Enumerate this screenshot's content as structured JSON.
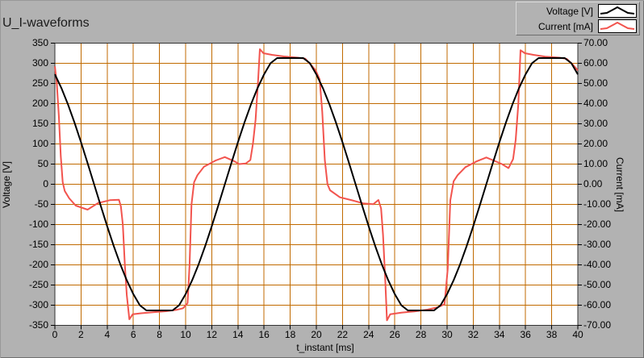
{
  "window": {
    "title": "U_I-waveforms"
  },
  "legend": {
    "items": [
      {
        "label": "Voltage [V]",
        "color": "#000000"
      },
      {
        "label": "Current [mA]",
        "color": "#f2544e"
      }
    ]
  },
  "colors": {
    "panel_bg": "#b2b2b2",
    "plot_bg": "#ffffff",
    "grid": "#c06a00",
    "plot_border": "#333333",
    "voltage_trace": "#000000",
    "current_trace": "#f2544e"
  },
  "chart_data": {
    "type": "line",
    "title": "U_I-waveforms",
    "grid": {
      "show": true,
      "color": "#c06a00"
    },
    "legend_position": "top-right",
    "x_axis": {
      "label": "t_instant [ms]",
      "min": 0,
      "max": 40,
      "tick_step": 2,
      "tick_labels": [
        "0",
        "2",
        "4",
        "6",
        "8",
        "10",
        "12",
        "14",
        "16",
        "18",
        "20",
        "22",
        "24",
        "26",
        "28",
        "30",
        "32",
        "34",
        "36",
        "38",
        "40"
      ]
    },
    "y_left_axis": {
      "label": "Voltage [V]",
      "min": -350,
      "max": 350,
      "tick_step": 50,
      "tick_labels": [
        "350",
        "300",
        "250",
        "200",
        "150",
        "100",
        "50",
        "0",
        "-50",
        "-100",
        "-150",
        "-200",
        "-250",
        "-300",
        "-350"
      ]
    },
    "y_right_axis": {
      "label": "Current [mA]",
      "min": -70,
      "max": 70,
      "tick_step": 10,
      "tick_labels": [
        "70.00",
        "60.00",
        "50.00",
        "40.00",
        "30.00",
        "20.00",
        "10.00",
        "0.00",
        "-10.00",
        "-20.00",
        "-30.00",
        "-40.00",
        "-50.00",
        "-60.00",
        "-70.00"
      ]
    },
    "series": [
      {
        "name": "Voltage [V]",
        "axis": "left",
        "unit": "V",
        "color": "#000000",
        "sampling": {
          "t0": 0,
          "dt": 0.5
        },
        "values": [
          272.6,
          238.3,
          198.1,
          153,
          104.1,
          52.7,
          0,
          -52.7,
          -104.1,
          -153,
          -198.1,
          -238.3,
          -272.6,
          -300.3,
          -313,
          -313,
          -313,
          -313,
          -313,
          -300.3,
          -272.6,
          -238.3,
          -198.1,
          -153,
          -104.1,
          -52.7,
          0,
          52.7,
          104.1,
          153,
          198.1,
          238.3,
          272.6,
          300.3,
          313,
          313,
          313,
          313,
          313,
          300.3,
          272.6,
          238.3,
          198.1,
          153,
          104.1,
          52.7,
          0,
          -52.7,
          -104.1,
          -153,
          -198.1,
          -238.3,
          -272.6,
          -300.3,
          -313,
          -313,
          -313,
          -313,
          -313,
          -300.3,
          -272.6,
          -238.3,
          -198.1,
          -153,
          -104.1,
          -52.7,
          0,
          52.7,
          104.1,
          153,
          198.1,
          238.3,
          272.6,
          300.3,
          313,
          313,
          313,
          313,
          313,
          300.3,
          272.6
        ]
      },
      {
        "name": "Current [mA]",
        "axis": "right",
        "unit": "mA",
        "color": "#f2544e",
        "points": [
          [
            0,
            58.5
          ],
          [
            0.15,
            50
          ],
          [
            0.3,
            34
          ],
          [
            0.45,
            14
          ],
          [
            0.6,
            1
          ],
          [
            0.75,
            -3.3
          ],
          [
            1.1,
            -7
          ],
          [
            1.6,
            -10.6
          ],
          [
            2.5,
            -12.6
          ],
          [
            3.3,
            -9.3
          ],
          [
            4.2,
            -7.9
          ],
          [
            4.9,
            -7.7
          ],
          [
            5.05,
            -11
          ],
          [
            5.2,
            -20
          ],
          [
            5.35,
            -40
          ],
          [
            5.5,
            -55
          ],
          [
            5.7,
            -67
          ],
          [
            5.95,
            -64.5
          ],
          [
            6.6,
            -64
          ],
          [
            7.5,
            -63.5
          ],
          [
            8.5,
            -63
          ],
          [
            9.3,
            -62.3
          ],
          [
            9.8,
            -61.5
          ],
          [
            10.15,
            -59
          ],
          [
            10.3,
            -40
          ],
          [
            10.45,
            -10
          ],
          [
            10.65,
            1
          ],
          [
            10.9,
            4.5
          ],
          [
            11.4,
            8.7
          ],
          [
            12.3,
            11.8
          ],
          [
            13,
            13.5
          ],
          [
            13.7,
            11.5
          ],
          [
            14.1,
            10
          ],
          [
            14.6,
            10.3
          ],
          [
            14.95,
            12
          ],
          [
            15.15,
            20
          ],
          [
            15.35,
            32
          ],
          [
            15.55,
            52
          ],
          [
            15.68,
            67
          ],
          [
            15.95,
            65
          ],
          [
            16.6,
            64.2
          ],
          [
            17.5,
            63.4
          ],
          [
            18.6,
            62.8
          ],
          [
            19.15,
            62.3
          ],
          [
            19.55,
            59.5
          ],
          [
            19.95,
            56.5
          ],
          [
            20.25,
            52
          ],
          [
            20.45,
            36
          ],
          [
            20.65,
            12
          ],
          [
            20.85,
            0
          ],
          [
            21.05,
            -3
          ],
          [
            21.8,
            -6.5
          ],
          [
            22.75,
            -8
          ],
          [
            23.6,
            -9.5
          ],
          [
            24.35,
            -9.9
          ],
          [
            24.75,
            -7.8
          ],
          [
            24.95,
            -12
          ],
          [
            25.1,
            -25
          ],
          [
            25.25,
            -45
          ],
          [
            25.4,
            -67.5
          ],
          [
            25.65,
            -64.5
          ],
          [
            26.5,
            -63.7
          ],
          [
            27.5,
            -63.1
          ],
          [
            28.5,
            -62.2
          ],
          [
            29.3,
            -61
          ],
          [
            29.8,
            -59.5
          ],
          [
            30.05,
            -42
          ],
          [
            30.25,
            -8
          ],
          [
            30.5,
            1.5
          ],
          [
            30.8,
            4.5
          ],
          [
            31.4,
            8.5
          ],
          [
            32.3,
            11.5
          ],
          [
            33,
            13.3
          ],
          [
            33.7,
            11.4
          ],
          [
            34.2,
            10
          ],
          [
            34.7,
            8
          ],
          [
            35.05,
            12.5
          ],
          [
            35.25,
            22
          ],
          [
            35.45,
            40
          ],
          [
            35.62,
            66.5
          ],
          [
            35.95,
            65
          ],
          [
            36.6,
            64.2
          ],
          [
            37.5,
            63.3
          ],
          [
            38.6,
            62.8
          ],
          [
            39.15,
            62.2
          ],
          [
            39.6,
            59.5
          ],
          [
            40,
            56.5
          ]
        ]
      }
    ]
  }
}
